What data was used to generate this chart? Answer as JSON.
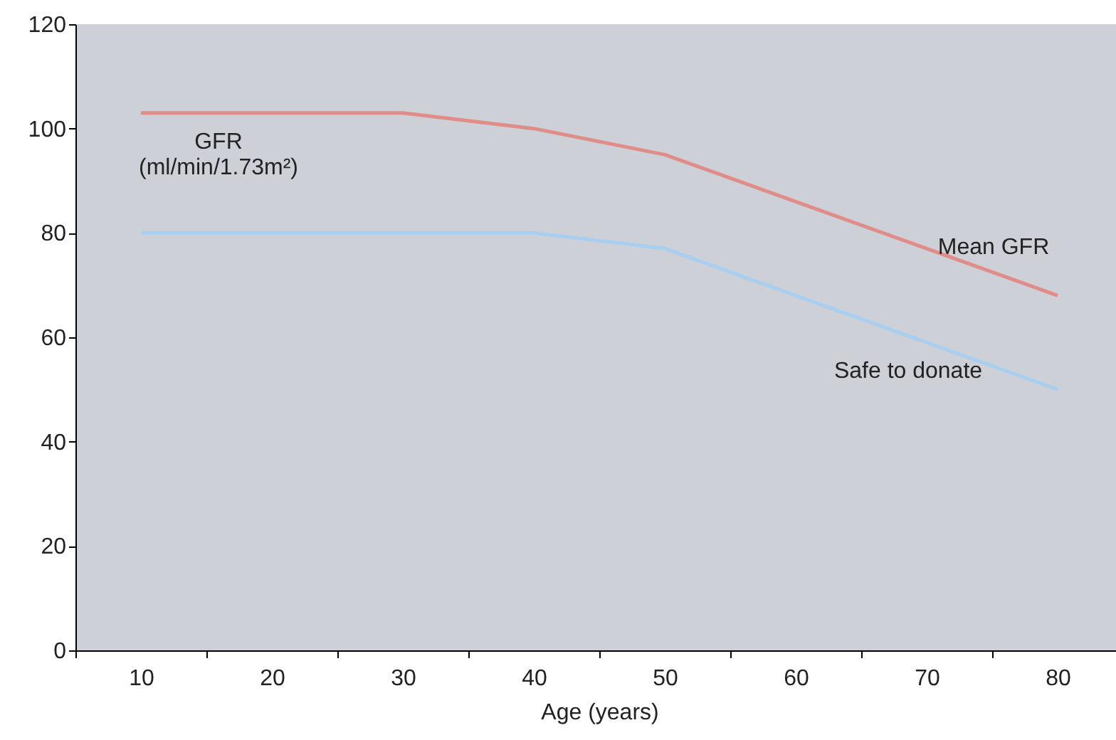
{
  "chart_data": {
    "type": "line",
    "xlabel": "Age (years)",
    "ylabel": "GFR (ml/min/1.73m²)",
    "categories": [
      "10",
      "20",
      "30",
      "40",
      "50",
      "60",
      "70",
      "80"
    ],
    "series": [
      {
        "name": "Mean GFR",
        "color": "#e08c88",
        "values": [
          103,
          103,
          103,
          100,
          95,
          86,
          77,
          68
        ]
      },
      {
        "name": "Safe to donate",
        "color": "#a8cef0",
        "values": [
          80,
          80,
          80,
          80,
          77,
          68,
          59,
          50
        ]
      }
    ],
    "ylim": [
      0,
      120
    ],
    "yticks": [
      0,
      20,
      40,
      60,
      80,
      100,
      120
    ]
  }
}
